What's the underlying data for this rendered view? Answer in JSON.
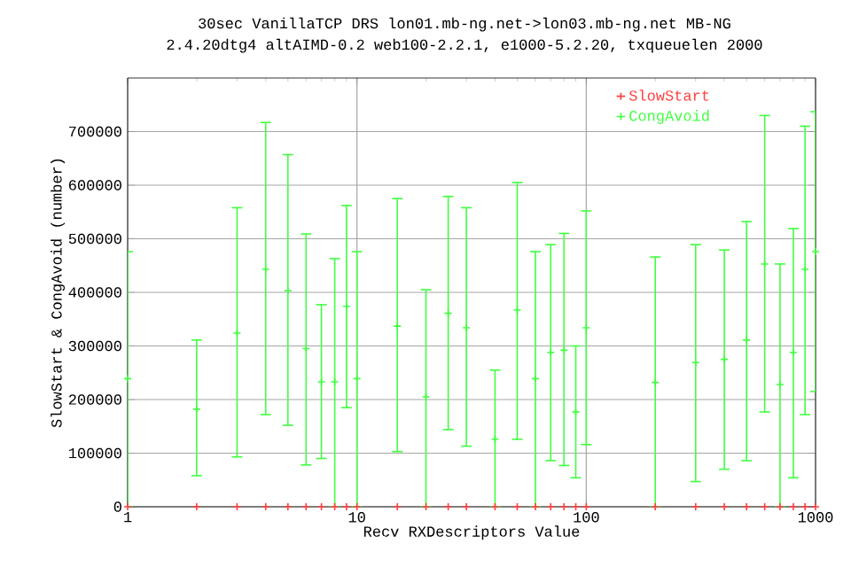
{
  "chart_data": {
    "type": "scatter",
    "title": "30sec VanillaTCP DRS lon01.mb-ng.net->lon03.mb-ng.net MB-NG",
    "subtitle": "2.4.20dtg4 altAIMD-0.2 web100-2.2.1, e1000-5.2.20, txqueuelen 2000",
    "xlabel": "Recv RXDescriptors Value",
    "ylabel": "SlowStart & CongAvoid (number)",
    "x": [
      1,
      2,
      3,
      4,
      5,
      6,
      7,
      8,
      9,
      10,
      15,
      20,
      25,
      30,
      40,
      50,
      60,
      70,
      80,
      90,
      100,
      200,
      300,
      400,
      500,
      600,
      700,
      800,
      900,
      1000
    ],
    "series": [
      {
        "name": "SlowStart",
        "color": "#ff4040",
        "values": [
          0,
          0,
          0,
          0,
          0,
          0,
          0,
          0,
          0,
          0,
          0,
          0,
          0,
          0,
          0,
          0,
          0,
          0,
          0,
          0,
          0,
          0,
          0,
          0,
          0,
          0,
          0,
          0,
          0,
          0
        ]
      },
      {
        "name": "CongAvoid",
        "color": "#40ff40",
        "values": [
          239000,
          182000,
          324000,
          443000,
          403000,
          295000,
          233000,
          233000,
          374000,
          239000,
          337000,
          205000,
          361000,
          334000,
          126000,
          367000,
          239000,
          288000,
          292000,
          177000,
          334000,
          232000,
          269000,
          275000,
          311000,
          453000,
          228000,
          288000,
          443000,
          476000
        ],
        "errors": [
          [
            0,
            476000
          ],
          [
            58000,
            311000
          ],
          [
            93000,
            558000
          ],
          [
            172000,
            717000
          ],
          [
            152000,
            657000
          ],
          [
            78000,
            509000
          ],
          [
            90000,
            377000
          ],
          [
            0,
            463000
          ],
          [
            185000,
            562000
          ],
          [
            0,
            476000
          ],
          [
            103000,
            575000
          ],
          [
            0,
            405000
          ],
          [
            144000,
            579000
          ],
          [
            113000,
            558000
          ],
          [
            0,
            255000
          ],
          [
            126000,
            605000
          ],
          [
            0,
            476000
          ],
          [
            86000,
            489000
          ],
          [
            77000,
            510000
          ],
          [
            54000,
            300000
          ],
          [
            116000,
            552000
          ],
          [
            0,
            466000
          ],
          [
            47000,
            489000
          ],
          [
            70000,
            479000
          ],
          [
            86000,
            532000
          ],
          [
            177000,
            730000
          ],
          [
            0,
            453000
          ],
          [
            54000,
            519000
          ],
          [
            172000,
            710000
          ],
          [
            215000,
            737000
          ]
        ]
      }
    ],
    "log": "x",
    "xlim": [
      1,
      1000
    ],
    "xticks": [
      1,
      10,
      100,
      1000
    ],
    "ylim": [
      0,
      800000
    ],
    "yticks": [
      0,
      100000,
      200000,
      300000,
      400000,
      500000,
      600000,
      700000
    ],
    "grid": true,
    "legend": "top right",
    "marker": "cross"
  }
}
